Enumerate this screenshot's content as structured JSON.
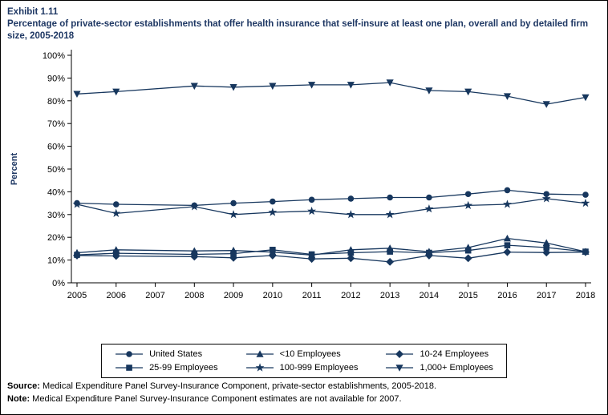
{
  "header": {
    "exhibit_label": "Exhibit 1.11",
    "title": "Percentage of private-sector establishments that offer health insurance that self-insure at least one plan, overall and by detailed firm size, 2005-2018"
  },
  "footer": {
    "source_prefix": "Source:",
    "source_text": " Medical Expenditure Panel Survey-Insurance Component, private-sector establishments, 2005-2018.",
    "note_prefix": "Note:",
    "note_text": " Medical Expenditure Panel Survey-Insurance Component estimates are not available for 2007."
  },
  "colors": {
    "line": "#17375E",
    "title": "#1F3864",
    "axis": "#000000"
  },
  "chart_data": {
    "type": "line",
    "title": "Percentage of private-sector establishments that offer health insurance that self-insure at least one plan, overall and by detailed firm size, 2005-2018",
    "xlabel": "",
    "ylabel": "Percent",
    "ylim": [
      0,
      100
    ],
    "ytick_step": 10,
    "ytick_suffix": "%",
    "grid": false,
    "legend_position": "bottom",
    "missing_year_note": "2007 estimates not available",
    "categories": [
      2005,
      2006,
      2007,
      2008,
      2009,
      2010,
      2011,
      2012,
      2013,
      2014,
      2015,
      2016,
      2017,
      2018
    ],
    "series": [
      {
        "name": "United States",
        "marker": "circle",
        "values": [
          35.0,
          34.5,
          null,
          34.0,
          35.0,
          35.7,
          36.5,
          37.0,
          37.5,
          37.5,
          39.0,
          40.7,
          39.0,
          38.7
        ]
      },
      {
        "name": "<10 Employees",
        "marker": "triangle-up",
        "values": [
          13.2,
          14.5,
          null,
          14.0,
          14.2,
          13.5,
          12.2,
          14.5,
          15.2,
          13.7,
          15.5,
          19.5,
          17.5,
          13.7
        ]
      },
      {
        "name": "10-24 Employees",
        "marker": "diamond",
        "values": [
          12.0,
          11.8,
          null,
          11.5,
          11.0,
          12.0,
          10.5,
          10.8,
          9.2,
          12.0,
          10.8,
          13.5,
          13.3,
          13.5
        ]
      },
      {
        "name": "25-99 Employees",
        "marker": "square",
        "values": [
          12.3,
          13.0,
          null,
          12.5,
          12.8,
          14.5,
          12.5,
          13.2,
          13.7,
          13.2,
          14.2,
          16.5,
          15.5,
          13.7
        ]
      },
      {
        "name": "100-999 Employees",
        "marker": "star",
        "values": [
          34.5,
          30.5,
          null,
          33.5,
          30.0,
          31.0,
          31.5,
          30.0,
          30.0,
          32.5,
          34.0,
          34.5,
          37.0,
          35.0
        ]
      },
      {
        "name": "1,000+ Employees",
        "marker": "triangle-down",
        "values": [
          83.0,
          84.0,
          null,
          86.5,
          86.0,
          86.5,
          87.0,
          87.0,
          88.0,
          84.5,
          84.0,
          82.0,
          78.5,
          81.5
        ]
      }
    ]
  }
}
